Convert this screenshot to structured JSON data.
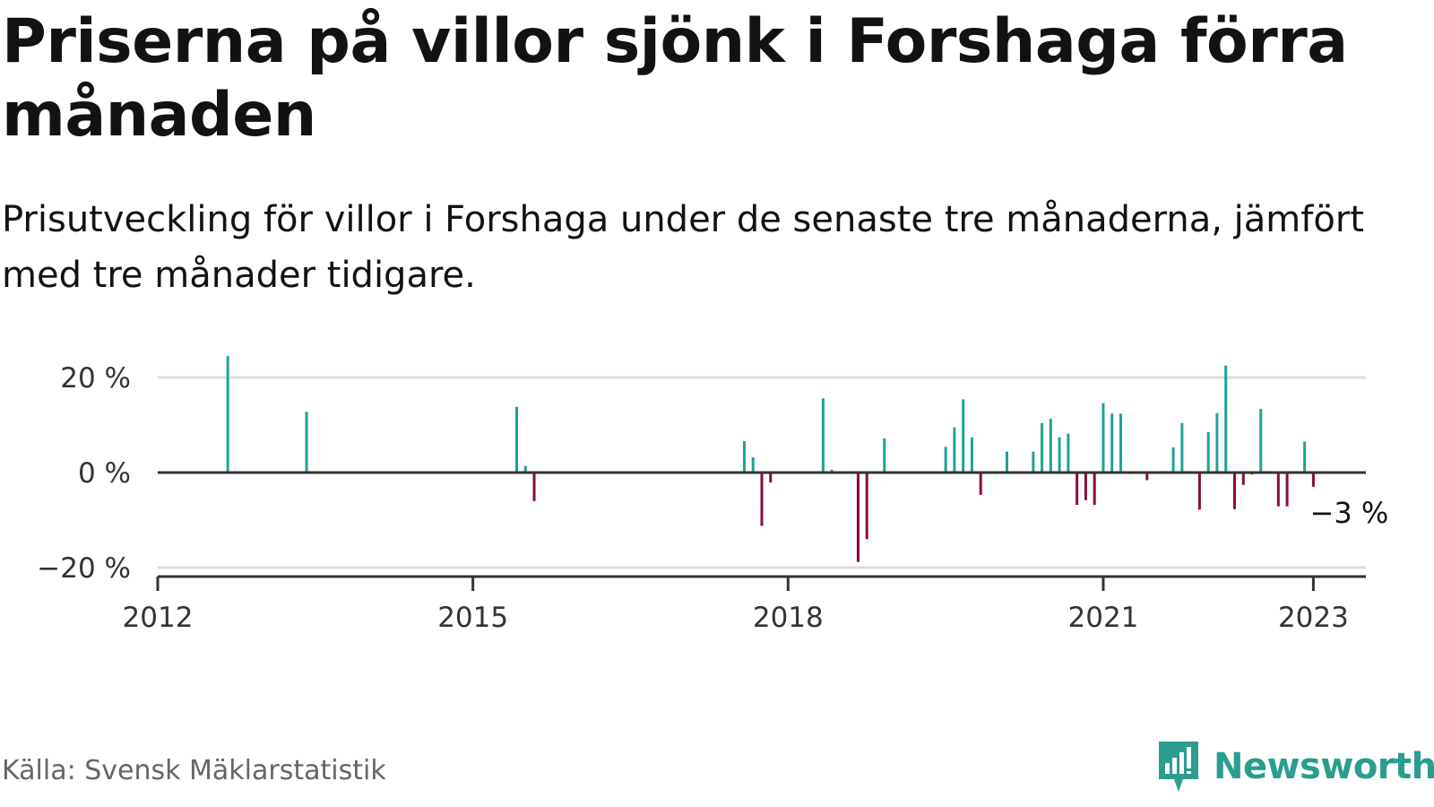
{
  "header": {
    "title": "Priserna på villor sjönk i Forshaga förra månaden",
    "subtitle": "Prisutveckling för villor i Forshaga under de senaste tre månaderna, jämfört med tre månader tidigare."
  },
  "footer": {
    "source": "Källa: Svensk Mäklarstatistik",
    "brand": "Newsworthy"
  },
  "colors": {
    "positive": "#1fa396",
    "negative": "#8c0a3d",
    "axis": "#333333",
    "grid": "#dddddd",
    "brand": "#2a9d8f"
  },
  "chart_data": {
    "type": "bar",
    "title": "Priserna på villor sjönk i Forshaga förra månaden",
    "subtitle": "Prisutveckling för villor i Forshaga under de senaste tre månaderna, jämfört med tre månader tidigare.",
    "ylim": [
      -20,
      20
    ],
    "y_ticks": [
      {
        "value": 20,
        "label": "20 %"
      },
      {
        "value": 0,
        "label": "0 %"
      },
      {
        "value": -20,
        "label": "−20 %"
      }
    ],
    "x_ticks": [
      {
        "value": "2012-01",
        "label": "2012"
      },
      {
        "value": "2015-01",
        "label": "2015"
      },
      {
        "value": "2018-01",
        "label": "2018"
      },
      {
        "value": "2021-01",
        "label": "2021"
      },
      {
        "value": "2023-01",
        "label": "2023"
      }
    ],
    "xlim": [
      "2012-01",
      "2023-07"
    ],
    "grid": true,
    "last_label": "−3 %",
    "points": [
      {
        "x": "2012-09",
        "y": 24.5
      },
      {
        "x": "2013-06",
        "y": 12.8
      },
      {
        "x": "2015-06",
        "y": 13.8
      },
      {
        "x": "2015-07",
        "y": 1.4
      },
      {
        "x": "2015-08",
        "y": -6.0
      },
      {
        "x": "2017-08",
        "y": 6.6
      },
      {
        "x": "2017-09",
        "y": 3.2
      },
      {
        "x": "2017-10",
        "y": -11.2
      },
      {
        "x": "2017-11",
        "y": -2.1
      },
      {
        "x": "2018-05",
        "y": 15.6
      },
      {
        "x": "2018-06",
        "y": 0.6
      },
      {
        "x": "2018-09",
        "y": -18.8
      },
      {
        "x": "2018-10",
        "y": -14.0
      },
      {
        "x": "2018-12",
        "y": 7.2
      },
      {
        "x": "2019-07",
        "y": 5.4
      },
      {
        "x": "2019-08",
        "y": 9.5
      },
      {
        "x": "2019-09",
        "y": 15.4
      },
      {
        "x": "2019-10",
        "y": 7.4
      },
      {
        "x": "2019-11",
        "y": -4.7
      },
      {
        "x": "2020-02",
        "y": 4.4
      },
      {
        "x": "2020-05",
        "y": 4.4
      },
      {
        "x": "2020-06",
        "y": 10.4
      },
      {
        "x": "2020-07",
        "y": 11.3
      },
      {
        "x": "2020-08",
        "y": 7.4
      },
      {
        "x": "2020-09",
        "y": 8.2
      },
      {
        "x": "2020-10",
        "y": -6.8
      },
      {
        "x": "2020-11",
        "y": -5.8
      },
      {
        "x": "2020-12",
        "y": -6.8
      },
      {
        "x": "2021-01",
        "y": 14.6
      },
      {
        "x": "2021-02",
        "y": 12.4
      },
      {
        "x": "2021-03",
        "y": 12.4
      },
      {
        "x": "2021-04",
        "y": -0.3
      },
      {
        "x": "2021-06",
        "y": -1.6
      },
      {
        "x": "2021-08",
        "y": 0.3
      },
      {
        "x": "2021-09",
        "y": 5.3
      },
      {
        "x": "2021-10",
        "y": 10.4
      },
      {
        "x": "2021-11",
        "y": 0.3
      },
      {
        "x": "2021-12",
        "y": -7.8
      },
      {
        "x": "2022-01",
        "y": 8.5
      },
      {
        "x": "2022-02",
        "y": 12.5
      },
      {
        "x": "2022-03",
        "y": 22.5
      },
      {
        "x": "2022-04",
        "y": -7.7
      },
      {
        "x": "2022-05",
        "y": -2.6
      },
      {
        "x": "2022-06",
        "y": -0.4
      },
      {
        "x": "2022-07",
        "y": 13.4
      },
      {
        "x": "2022-08",
        "y": 0.3
      },
      {
        "x": "2022-09",
        "y": -7.1
      },
      {
        "x": "2022-10",
        "y": -7.1
      },
      {
        "x": "2022-11",
        "y": 0.3
      },
      {
        "x": "2022-12",
        "y": 6.5
      },
      {
        "x": "2023-01",
        "y": -3.0
      }
    ]
  }
}
